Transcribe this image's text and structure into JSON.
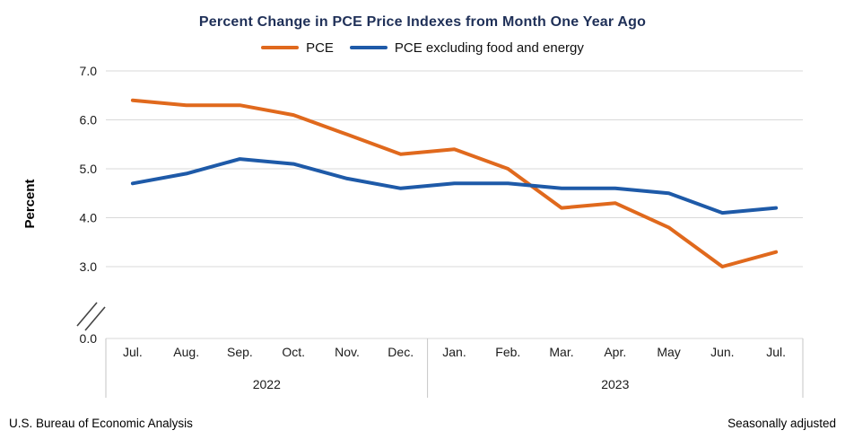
{
  "title": "Percent Change in PCE Price Indexes from Month One Year Ago",
  "footer": {
    "left": "U.S. Bureau of Economic Analysis",
    "right": "Seasonally adjusted"
  },
  "chart_data": {
    "type": "line",
    "title": "Percent Change in PCE Price Indexes from Month One Year Ago",
    "ylabel": "Percent",
    "xlabel": "",
    "grid": true,
    "legend_position": "top",
    "categories": [
      "Jul.",
      "Aug.",
      "Sep.",
      "Oct.",
      "Nov.",
      "Dec.",
      "Jan.",
      "Feb.",
      "Mar.",
      "Apr.",
      "May",
      "Jun.",
      "Jul."
    ],
    "year_groups": [
      {
        "label": "2022",
        "start": 0,
        "end": 5
      },
      {
        "label": "2023",
        "start": 6,
        "end": 12
      }
    ],
    "series": [
      {
        "name": "PCE",
        "color": "#e0691d",
        "values": [
          6.4,
          6.3,
          6.3,
          6.1,
          5.7,
          5.3,
          5.4,
          5.0,
          4.2,
          4.3,
          3.8,
          3.0,
          3.3
        ]
      },
      {
        "name": "PCE excluding food and energy",
        "color": "#1e5aa8",
        "values": [
          4.7,
          4.9,
          5.2,
          5.1,
          4.8,
          4.6,
          4.7,
          4.7,
          4.6,
          4.6,
          4.5,
          4.1,
          4.2
        ]
      }
    ],
    "y_ticks": [
      3.0,
      4.0,
      5.0,
      6.0,
      7.0
    ],
    "y_baseline_label": "0.0",
    "ylim": [
      0.0,
      7.0
    ],
    "axis_break": true,
    "axis_break_between": [
      0.0,
      3.0
    ],
    "gridline_color": "#d9d9d9",
    "divider_color": "#c6c6c6"
  }
}
